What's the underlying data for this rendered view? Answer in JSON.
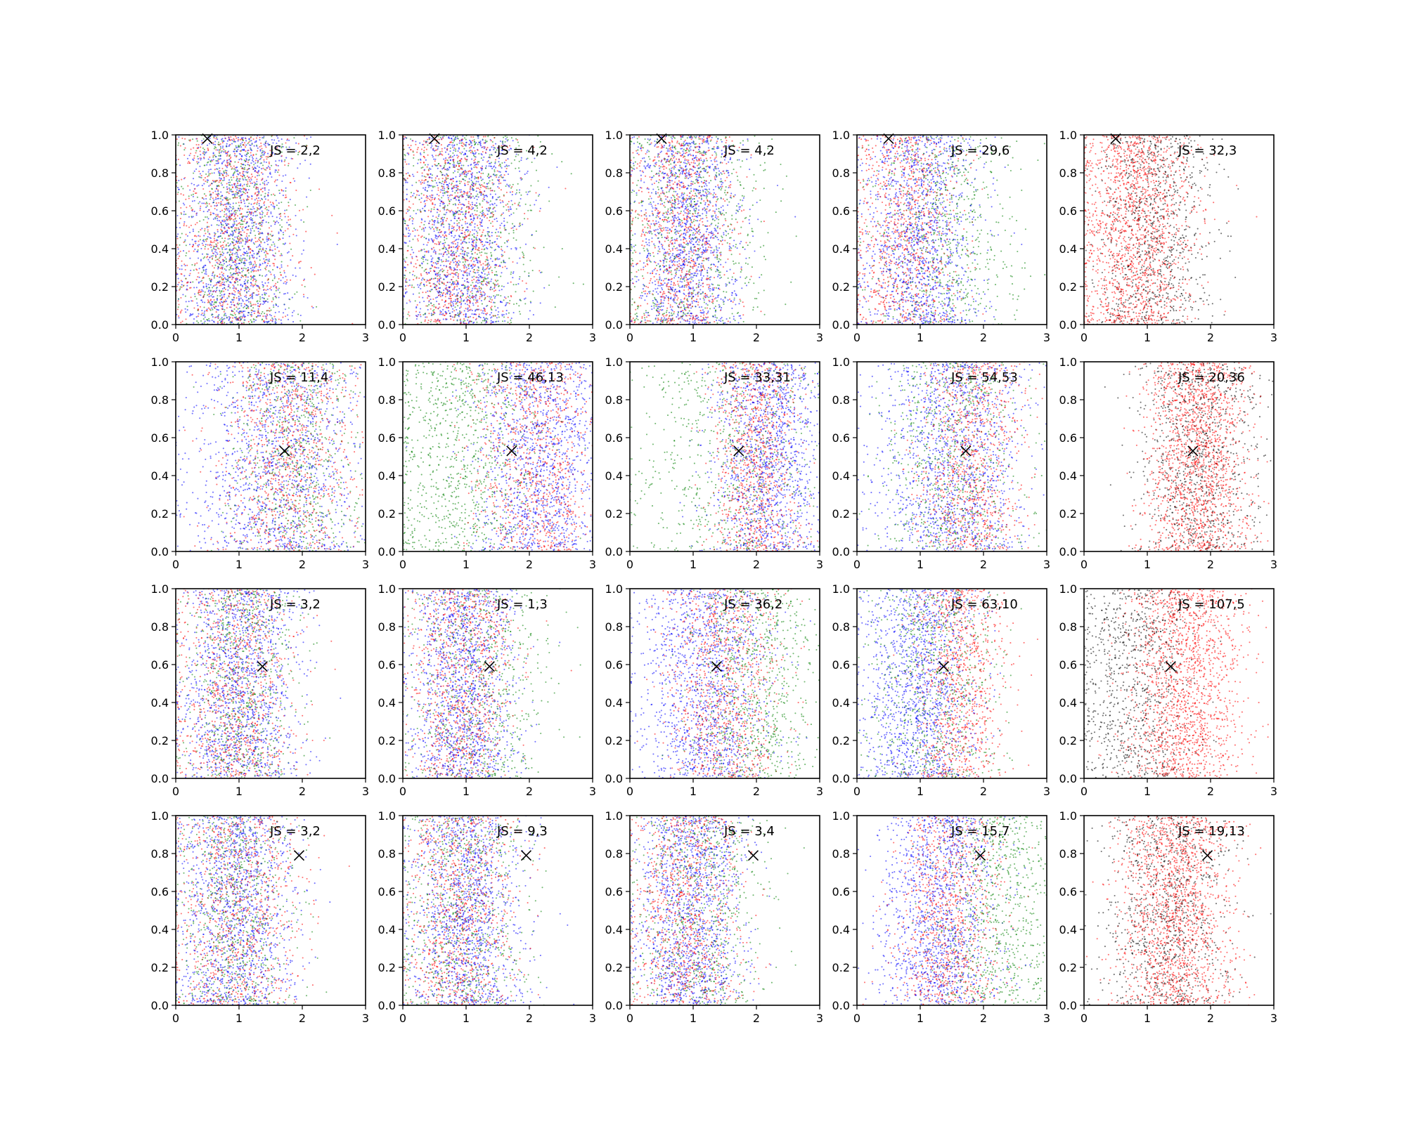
{
  "chart_data": {
    "type": "scatter",
    "layout": {
      "rows": 4,
      "cols": 5
    },
    "title": "",
    "xlabel": "",
    "ylabel": "",
    "xlim": [
      0,
      3
    ],
    "ylim": [
      0,
      1
    ],
    "xticks": [
      "0",
      "1",
      "2",
      "3"
    ],
    "yticks": [
      "0.0",
      "0.2",
      "0.4",
      "0.6",
      "0.8",
      "1.0"
    ],
    "grid": false,
    "point_colors": [
      "#0000ff",
      "#ff0000",
      "#008000",
      "#000000"
    ],
    "marker_x": [
      {
        "x": 0.5,
        "y": 0.98
      },
      {
        "x": 1.72,
        "y": 0.53
      },
      {
        "x": 1.37,
        "y": 0.59
      },
      {
        "x": 1.95,
        "y": 0.79
      }
    ],
    "panels": [
      {
        "label": "JS = 2,2",
        "colors": [
          "blue",
          "red",
          "green"
        ],
        "clusters": [
          {
            "c": "blue",
            "cx": 0.95,
            "sx": 0.45,
            "n": 1300
          },
          {
            "c": "red",
            "cx": 0.9,
            "sx": 0.5,
            "n": 900
          },
          {
            "c": "green",
            "cx": 0.95,
            "sx": 0.45,
            "n": 700
          }
        ]
      },
      {
        "label": "JS = 4,2",
        "colors": [
          "blue",
          "red",
          "green"
        ],
        "clusters": [
          {
            "c": "blue",
            "cx": 0.95,
            "sx": 0.45,
            "n": 1300
          },
          {
            "c": "red",
            "cx": 0.85,
            "sx": 0.45,
            "n": 900
          },
          {
            "c": "green",
            "cx": 1.1,
            "sx": 0.55,
            "n": 700
          }
        ]
      },
      {
        "label": "JS = 4,2",
        "colors": [
          "blue",
          "red",
          "green"
        ],
        "clusters": [
          {
            "c": "blue",
            "cx": 0.9,
            "sx": 0.4,
            "n": 1300
          },
          {
            "c": "red",
            "cx": 0.8,
            "sx": 0.4,
            "n": 900
          },
          {
            "c": "green",
            "cx": 1.0,
            "sx": 0.6,
            "n": 700
          }
        ]
      },
      {
        "label": "JS = 29,6",
        "colors": [
          "blue",
          "red",
          "green"
        ],
        "clusters": [
          {
            "c": "blue",
            "cx": 1.0,
            "sx": 0.45,
            "n": 1300
          },
          {
            "c": "red",
            "cx": 0.75,
            "sx": 0.45,
            "n": 900
          },
          {
            "c": "green",
            "cx": 1.4,
            "sx": 0.6,
            "n": 700
          }
        ]
      },
      {
        "label": "JS = 32,3",
        "colors": [
          "red",
          "black"
        ],
        "clusters": [
          {
            "c": "red",
            "cx": 0.8,
            "sx": 0.45,
            "n": 1600
          },
          {
            "c": "black",
            "cx": 1.1,
            "sx": 0.45,
            "n": 900
          }
        ]
      },
      {
        "label": "JS = 11,4",
        "colors": [
          "blue",
          "red",
          "green"
        ],
        "clusters": [
          {
            "c": "blue",
            "cx": 1.6,
            "sx": 0.7,
            "n": 1300
          },
          {
            "c": "red",
            "cx": 1.8,
            "sx": 0.55,
            "n": 900
          },
          {
            "c": "green",
            "cx": 1.9,
            "sx": 0.55,
            "n": 700
          }
        ]
      },
      {
        "label": "JS = 46,13",
        "colors": [
          "blue",
          "red",
          "green"
        ],
        "clusters": [
          {
            "c": "blue",
            "cx": 2.2,
            "sx": 0.5,
            "n": 1300
          },
          {
            "c": "red",
            "cx": 2.1,
            "sx": 0.5,
            "n": 900
          },
          {
            "c": "green",
            "cx": 0.9,
            "sx": 0.6,
            "n": 900
          }
        ]
      },
      {
        "label": "JS = 33,31",
        "colors": [
          "blue",
          "red",
          "green"
        ],
        "clusters": [
          {
            "c": "blue",
            "cx": 2.2,
            "sx": 0.45,
            "n": 1300
          },
          {
            "c": "red",
            "cx": 2.0,
            "sx": 0.35,
            "n": 900
          },
          {
            "c": "green",
            "cx": 1.6,
            "sx": 0.8,
            "n": 700
          }
        ]
      },
      {
        "label": "JS = 54,53",
        "colors": [
          "blue",
          "red",
          "green"
        ],
        "clusters": [
          {
            "c": "blue",
            "cx": 1.5,
            "sx": 0.6,
            "n": 1300
          },
          {
            "c": "red",
            "cx": 1.8,
            "sx": 0.4,
            "n": 900
          },
          {
            "c": "green",
            "cx": 1.5,
            "sx": 0.55,
            "n": 700
          }
        ]
      },
      {
        "label": "JS = 20,36",
        "colors": [
          "red",
          "black"
        ],
        "clusters": [
          {
            "c": "red",
            "cx": 1.8,
            "sx": 0.4,
            "n": 1600
          },
          {
            "c": "black",
            "cx": 1.8,
            "sx": 0.5,
            "n": 900
          }
        ]
      },
      {
        "label": "JS = 3,2",
        "colors": [
          "blue",
          "red",
          "green"
        ],
        "clusters": [
          {
            "c": "blue",
            "cx": 1.0,
            "sx": 0.45,
            "n": 1300
          },
          {
            "c": "red",
            "cx": 0.95,
            "sx": 0.5,
            "n": 900
          },
          {
            "c": "green",
            "cx": 1.0,
            "sx": 0.45,
            "n": 700
          }
        ]
      },
      {
        "label": "JS = 1,3",
        "colors": [
          "blue",
          "red",
          "green"
        ],
        "clusters": [
          {
            "c": "blue",
            "cx": 0.95,
            "sx": 0.4,
            "n": 1300
          },
          {
            "c": "red",
            "cx": 0.95,
            "sx": 0.4,
            "n": 900
          },
          {
            "c": "green",
            "cx": 1.2,
            "sx": 0.55,
            "n": 700
          }
        ]
      },
      {
        "label": "JS = 36,2",
        "colors": [
          "blue",
          "red",
          "green"
        ],
        "clusters": [
          {
            "c": "blue",
            "cx": 1.2,
            "sx": 0.5,
            "n": 1300
          },
          {
            "c": "red",
            "cx": 1.5,
            "sx": 0.45,
            "n": 900
          },
          {
            "c": "green",
            "cx": 2.0,
            "sx": 0.5,
            "n": 800
          }
        ]
      },
      {
        "label": "JS = 63,10",
        "colors": [
          "blue",
          "red",
          "green"
        ],
        "clusters": [
          {
            "c": "blue",
            "cx": 1.0,
            "sx": 0.45,
            "n": 1300
          },
          {
            "c": "red",
            "cx": 1.6,
            "sx": 0.35,
            "n": 900
          },
          {
            "c": "green",
            "cx": 1.2,
            "sx": 0.5,
            "n": 700
          }
        ]
      },
      {
        "label": "JS = 107,5",
        "colors": [
          "red",
          "black"
        ],
        "clusters": [
          {
            "c": "red",
            "cx": 1.6,
            "sx": 0.45,
            "n": 1600
          },
          {
            "c": "black",
            "cx": 0.8,
            "sx": 0.45,
            "n": 900
          }
        ]
      },
      {
        "label": "JS = 3,2",
        "colors": [
          "blue",
          "red",
          "green"
        ],
        "clusters": [
          {
            "c": "blue",
            "cx": 0.95,
            "sx": 0.45,
            "n": 1300
          },
          {
            "c": "red",
            "cx": 0.95,
            "sx": 0.5,
            "n": 900
          },
          {
            "c": "green",
            "cx": 0.95,
            "sx": 0.45,
            "n": 700
          }
        ]
      },
      {
        "label": "JS = 9,3",
        "colors": [
          "blue",
          "red",
          "green"
        ],
        "clusters": [
          {
            "c": "blue",
            "cx": 1.0,
            "sx": 0.45,
            "n": 1300
          },
          {
            "c": "red",
            "cx": 0.9,
            "sx": 0.45,
            "n": 900
          },
          {
            "c": "green",
            "cx": 0.95,
            "sx": 0.5,
            "n": 700
          }
        ]
      },
      {
        "label": "JS = 3,4",
        "colors": [
          "blue",
          "red",
          "green"
        ],
        "clusters": [
          {
            "c": "blue",
            "cx": 0.95,
            "sx": 0.4,
            "n": 1300
          },
          {
            "c": "red",
            "cx": 0.9,
            "sx": 0.45,
            "n": 900
          },
          {
            "c": "green",
            "cx": 1.1,
            "sx": 0.5,
            "n": 700
          }
        ]
      },
      {
        "label": "JS = 15,7",
        "colors": [
          "blue",
          "red",
          "green"
        ],
        "clusters": [
          {
            "c": "blue",
            "cx": 1.3,
            "sx": 0.45,
            "n": 1300
          },
          {
            "c": "red",
            "cx": 1.45,
            "sx": 0.4,
            "n": 900
          },
          {
            "c": "green",
            "cx": 2.2,
            "sx": 0.5,
            "n": 800
          }
        ]
      },
      {
        "label": "JS = 19,13",
        "colors": [
          "red",
          "black"
        ],
        "clusters": [
          {
            "c": "red",
            "cx": 1.45,
            "sx": 0.45,
            "n": 1600
          },
          {
            "c": "black",
            "cx": 1.3,
            "sx": 0.5,
            "n": 900
          }
        ]
      }
    ]
  }
}
